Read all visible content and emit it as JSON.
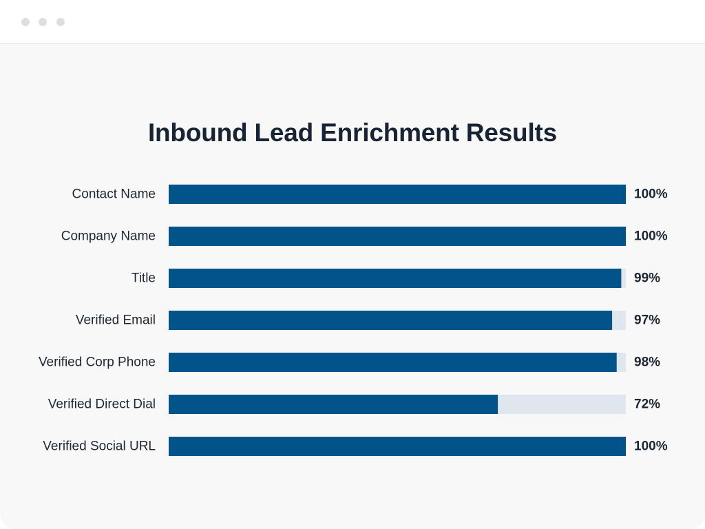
{
  "window": {
    "controls": [
      "dot",
      "dot",
      "dot"
    ],
    "dot_color": "#dedede"
  },
  "colors": {
    "bar": "#02538a",
    "track": "#dfe6ee",
    "text": "#1d2733",
    "title": "#182433",
    "background": "#f8f8f8"
  },
  "chart_data": {
    "type": "bar",
    "orientation": "horizontal",
    "title": "Inbound Lead Enrichment Results",
    "xlabel": "",
    "ylabel": "",
    "xlim": [
      0,
      100
    ],
    "grid": false,
    "categories": [
      "Contact Name",
      "Company Name",
      "Title",
      "Verified Email",
      "Verified Corp Phone",
      "Verified Direct Dial",
      "Verified Social URL"
    ],
    "values": [
      100,
      100,
      99,
      97,
      98,
      72,
      100
    ],
    "value_labels": [
      "100%",
      "100%",
      "99%",
      "97%",
      "98%",
      "72%",
      "100%"
    ]
  }
}
